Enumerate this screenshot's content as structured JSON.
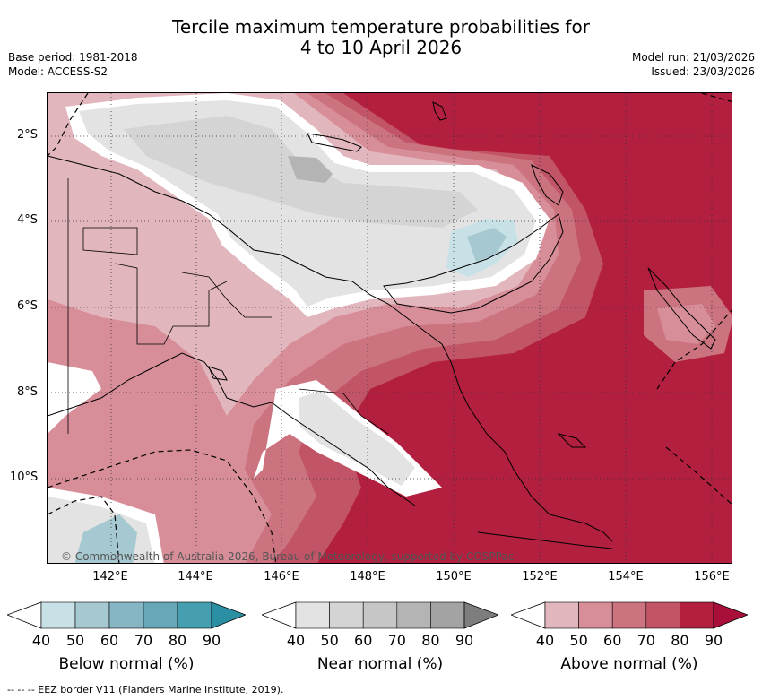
{
  "header": {
    "title_line1": "Tercile maximum temperature probabilities for",
    "title_line2": "4 to 10 April 2026",
    "base_period": "Base period: 1981-2018",
    "model": "Model: ACCESS-S2",
    "model_run": "Model run: 21/03/2026",
    "issued": "Issued: 23/03/2026"
  },
  "map": {
    "lat_labels": [
      "2°S",
      "4°S",
      "6°S",
      "8°S",
      "10°S"
    ],
    "lon_labels": [
      "142°E",
      "144°E",
      "146°E",
      "148°E",
      "150°E",
      "152°E",
      "154°E",
      "156°E"
    ],
    "copyright": "© Commonwealth of Australia 2026, Bureau of Meteorology, supported by COSPPac"
  },
  "legend": {
    "ticks": [
      "40",
      "50",
      "60",
      "70",
      "80",
      "90"
    ],
    "below": {
      "label": "Below normal (%)",
      "colors": [
        "#ffffff",
        "#c8e1e7",
        "#a6c9d1",
        "#86b6c3",
        "#67a7b7",
        "#459fb1",
        "#2b8fa3"
      ]
    },
    "near": {
      "label": "Near normal (%)",
      "colors": [
        "#ffffff",
        "#e3e3e3",
        "#d4d4d4",
        "#c6c6c6",
        "#b4b4b4",
        "#a3a3a3",
        "#7d7d7d"
      ]
    },
    "above": {
      "label": "Above normal (%)",
      "colors": [
        "#ffffff",
        "#e2b6bd",
        "#d78e98",
        "#cc7380",
        "#c25467",
        "#b31f3e",
        "#a8103a"
      ]
    }
  },
  "footer": "--  --  -- EEZ border V11 (Flanders Marine Institute, 2019)."
}
